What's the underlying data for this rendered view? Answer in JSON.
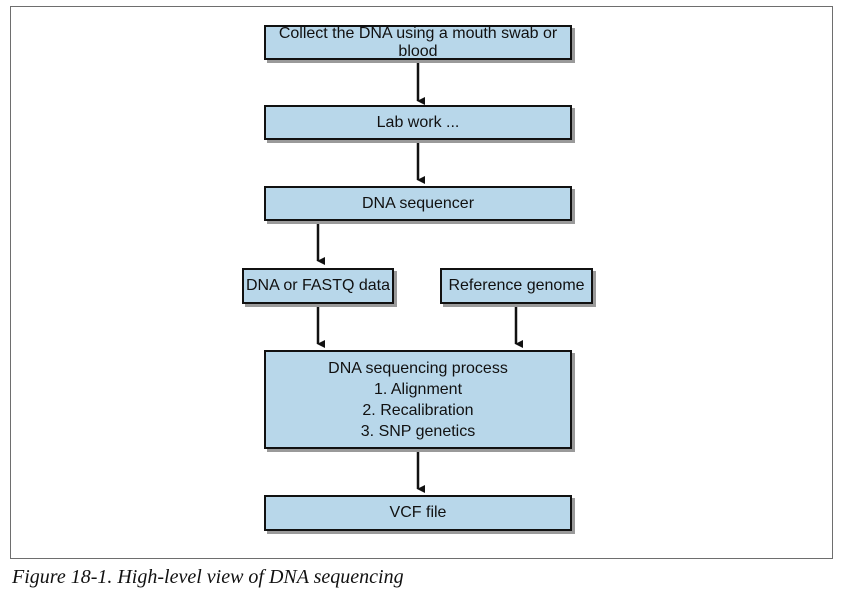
{
  "diagram": {
    "nodes": {
      "collect": "Collect the DNA using a mouth swab or blood",
      "lab_work": "Lab work ...",
      "sequencer": "DNA sequencer",
      "fastq": "DNA or FASTQ data",
      "reference": "Reference genome",
      "process": {
        "title": "DNA sequencing process",
        "steps": [
          "1. Alignment",
          "2. Recalibration",
          "3. SNP genetics"
        ]
      },
      "vcf": "VCF file"
    },
    "edges": [
      [
        "collect",
        "lab_work"
      ],
      [
        "lab_work",
        "sequencer"
      ],
      [
        "sequencer",
        "fastq"
      ],
      [
        "fastq",
        "process"
      ],
      [
        "reference",
        "process"
      ],
      [
        "process",
        "vcf"
      ]
    ],
    "colors": {
      "box_fill": "#b8d7ea",
      "box_border": "#111111",
      "shadow": "#9a9a9a"
    }
  },
  "caption": "Figure 18-1. High-level view of DNA sequencing"
}
